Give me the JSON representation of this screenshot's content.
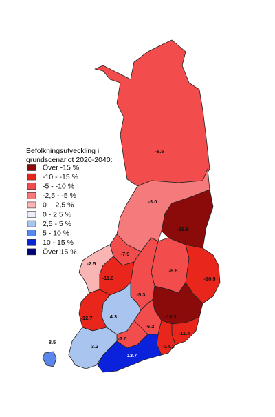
{
  "map_data": {
    "legend": {
      "title": [
        "Befolkningsutveckling i",
        "grundscenariot 2020-2040:"
      ],
      "items": [
        {
          "label": "Över -15 %",
          "color": "#8b0a0a"
        },
        {
          "label": "-10 - -15 %",
          "color": "#e8261c"
        },
        {
          "label": "-5 - -10 %",
          "color": "#f24c4c"
        },
        {
          "label": "-2,5 - -5 %",
          "color": "#f47a7c"
        },
        {
          "label": "0 - -2,5 %",
          "color": "#f9b4b4"
        },
        {
          "label": "0 - 2,5 %",
          "color": "#e9eef8"
        },
        {
          "label": "2,5 - 5 %",
          "color": "#a9c4ef"
        },
        {
          "label": "5 - 10 %",
          "color": "#5b86ee"
        },
        {
          "label": "10 - 15 %",
          "color": "#0b22dc"
        },
        {
          "label": "Över 15 %",
          "color": "#00007a"
        }
      ]
    },
    "values": [
      -8.5,
      -3.0,
      -16.9,
      -7.9,
      -2.5,
      -11.6,
      -8.8,
      -10.9,
      -5.3,
      -16.3,
      4.3,
      -12.7,
      -6.2,
      -7.0,
      -11.4,
      -14.1,
      3.2,
      13.7,
      8.5
    ],
    "value_labels": [
      "-8.5",
      "-3.0",
      "-16.9",
      "-7.9",
      "-2.5",
      "-11.6",
      "-8.8",
      "-10.9",
      "-5.3",
      "-16.3",
      "4.3",
      "-12.7",
      "-6.2",
      "-7.0",
      "-11.4",
      "-14.1",
      "3.2",
      "13.7",
      "8.5"
    ],
    "colors": [
      "#f24c4c",
      "#f47a7c",
      "#8b0a0a",
      "#f24c4c",
      "#f9b4b4",
      "#e8261c",
      "#f24c4c",
      "#e8261c",
      "#f24c4c",
      "#8b0a0a",
      "#a9c4ef",
      "#e8261c",
      "#f24c4c",
      "#f24c4c",
      "#e8261c",
      "#e8261c",
      "#a9c4ef",
      "#0b22dc",
      "#5b86ee"
    ]
  }
}
